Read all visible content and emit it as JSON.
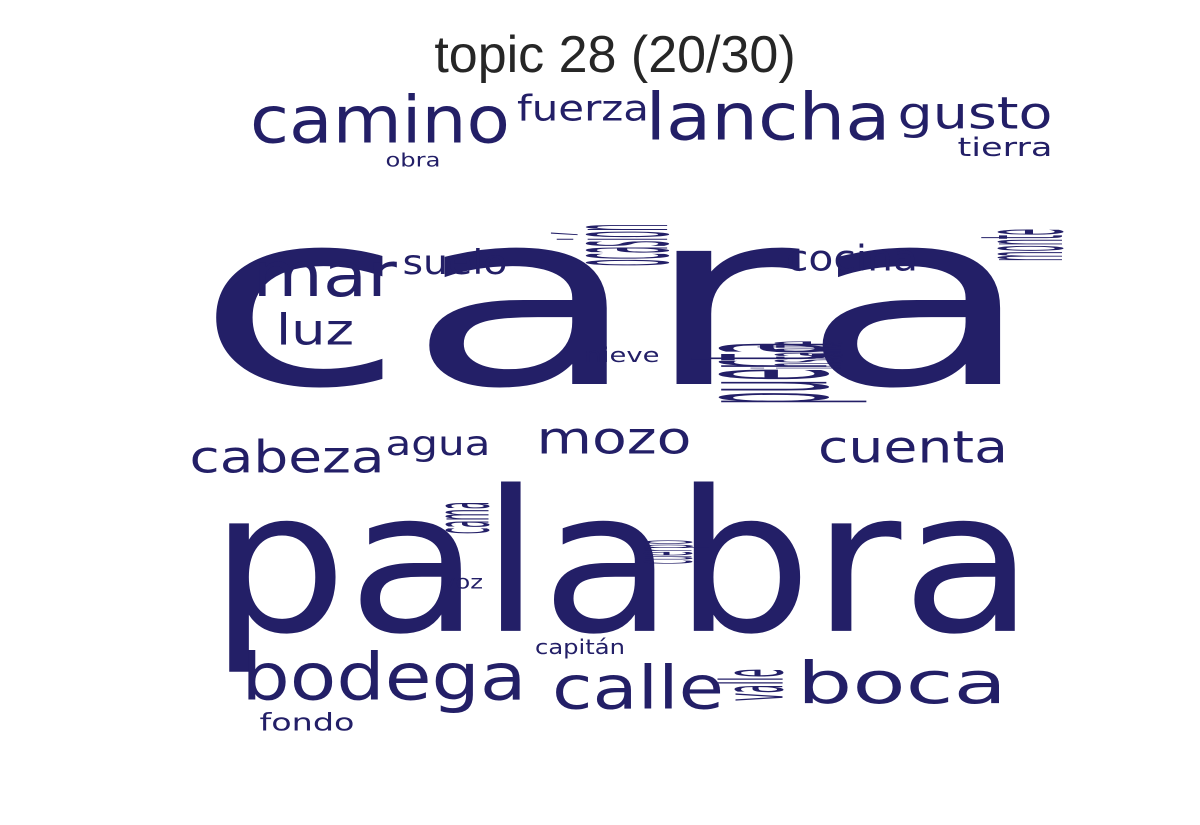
{
  "title": "topic 28 (20/30)",
  "word_color": "#231f67",
  "words": [
    "cara",
    "palabra",
    "puerta",
    "ocasión",
    "lancha",
    "camino",
    "mar",
    "bodega",
    "calle",
    "boca",
    "cabeza",
    "mozo",
    "cuenta",
    "gusto",
    "fuerza",
    "monte",
    "cocina",
    "suelo",
    "luz",
    "agua",
    "instante",
    "cama",
    "cuerpo",
    "valle",
    "tierra",
    "obra",
    "nieve",
    "voz",
    "capitán",
    "fondo"
  ]
}
